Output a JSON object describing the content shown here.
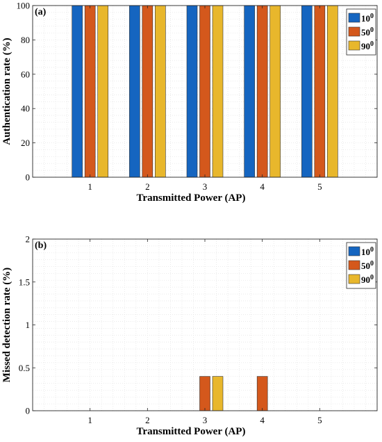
{
  "chart_data": [
    {
      "type": "bar",
      "panel_label": "(a)",
      "categories": [
        "1",
        "2",
        "3",
        "4",
        "5"
      ],
      "series": [
        {
          "name": "10",
          "sup": "0",
          "color": "#1565c0",
          "values": [
            100,
            100,
            100,
            100,
            100
          ]
        },
        {
          "name": "50",
          "sup": "0",
          "color": "#d4581c",
          "values": [
            100,
            100,
            100,
            100,
            100
          ]
        },
        {
          "name": "90",
          "sup": "0",
          "color": "#e8b72c",
          "values": [
            100,
            100,
            100,
            100,
            100
          ]
        }
      ],
      "xlabel": "Transmitted Power (AP)",
      "ylabel": "Authentication rate (%)",
      "ylim": [
        0,
        100
      ],
      "yticks": [
        0,
        20,
        40,
        60,
        80,
        100
      ],
      "ytick_labels": [
        "0",
        "20",
        "40",
        "60",
        "80",
        "100"
      ],
      "xlim": [
        0,
        6
      ],
      "grid": true,
      "legend": "top-right"
    },
    {
      "type": "bar",
      "panel_label": "(b)",
      "categories": [
        "1",
        "2",
        "3",
        "4",
        "5"
      ],
      "series": [
        {
          "name": "10",
          "sup": "0",
          "color": "#1565c0",
          "values": [
            0,
            0,
            0,
            0,
            0
          ]
        },
        {
          "name": "50",
          "sup": "0",
          "color": "#d4581c",
          "values": [
            0,
            0,
            0.4,
            0.4,
            0
          ]
        },
        {
          "name": "90",
          "sup": "0",
          "color": "#e8b72c",
          "values": [
            0,
            0,
            0.4,
            0,
            0
          ]
        }
      ],
      "xlabel": "Transmitted Power (AP)",
      "ylabel": "Missed detection rate (%)",
      "ylim": [
        0,
        2
      ],
      "yticks": [
        0,
        0.5,
        1,
        1.5,
        2
      ],
      "ytick_labels": [
        "0",
        "0.5",
        "1",
        "1.5",
        "2"
      ],
      "xlim": [
        0,
        6
      ],
      "grid": true,
      "legend": "top-right"
    }
  ]
}
